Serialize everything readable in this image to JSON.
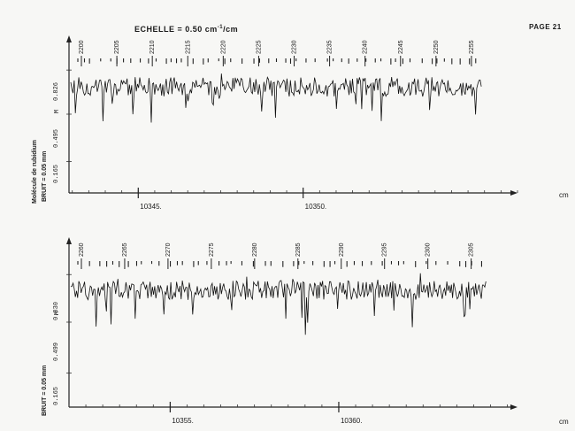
{
  "header": {
    "title_prefix": "ECHELLE = 0.50 cm",
    "title_exp": "-1",
    "title_suffix": "/cm",
    "page_number": "PAGE 21"
  },
  "chart_data": [
    {
      "type": "line",
      "molecule_label": "Molécule de rubidium",
      "noise_label": "BRUIT = 0.05 mm",
      "marker": "M",
      "y_ticks": [
        "0.165",
        "0.495",
        "0.826"
      ],
      "x_unit": "cm",
      "x_ticks": [
        {
          "label": "10345.",
          "value": 10345
        },
        {
          "label": "10350.",
          "value": 10350
        }
      ],
      "xlim": [
        10342.9,
        10356.5
      ],
      "line_labels": [
        "2200",
        "2205",
        "2210",
        "2215",
        "2220",
        "2225",
        "2230",
        "2235",
        "2240",
        "2245",
        "2250",
        "2255"
      ],
      "seed": 11
    },
    {
      "type": "line",
      "noise_label": "BRUIT = 0.05 mm",
      "marker": "M",
      "y_ticks": [
        "0.165",
        "0.499",
        "0.830"
      ],
      "x_unit": "cm",
      "x_ticks": [
        {
          "label": "10355.",
          "value": 10355
        },
        {
          "label": "10360.",
          "value": 10360
        }
      ],
      "xlim": [
        10352.0,
        10365.3
      ],
      "line_labels": [
        "2260",
        "2265",
        "2270",
        "2275",
        "2280",
        "2285",
        "2290",
        "2295",
        "2300",
        "2305"
      ],
      "seed": 29
    }
  ]
}
